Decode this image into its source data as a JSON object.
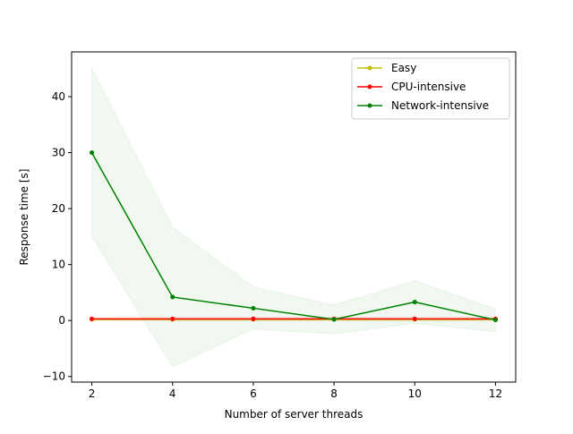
{
  "chart_data": {
    "type": "line",
    "title": "",
    "xlabel": "Number of server threads",
    "ylabel": "Response time [s]",
    "xlim": [
      1.5,
      12.5
    ],
    "ylim": [
      -11,
      48
    ],
    "xticks": [
      2,
      4,
      6,
      8,
      10,
      12
    ],
    "yticks": [
      -10,
      0,
      10,
      20,
      30,
      40
    ],
    "grid": false,
    "legend_position": "top-right",
    "x": [
      2,
      4,
      6,
      8,
      10,
      12
    ],
    "series": [
      {
        "name": "Easy",
        "color": "#bfbf00",
        "values": [
          0.2,
          0.2,
          0.2,
          0.2,
          0.2,
          0.2
        ],
        "band_lower": [
          0.0,
          0.0,
          0.0,
          0.0,
          0.0,
          0.0
        ],
        "band_upper": [
          0.4,
          0.4,
          0.4,
          0.4,
          0.4,
          0.4
        ]
      },
      {
        "name": "CPU-intensive",
        "color": "#ff0000",
        "values": [
          0.3,
          0.3,
          0.3,
          0.3,
          0.3,
          0.3
        ],
        "band_lower": [
          0.1,
          0.0,
          0.0,
          0.0,
          0.0,
          0.0
        ],
        "band_upper": [
          0.5,
          0.6,
          0.6,
          0.6,
          0.6,
          0.6
        ]
      },
      {
        "name": "Network-intensive",
        "color": "#008000",
        "values": [
          30.0,
          4.2,
          2.2,
          0.2,
          3.3,
          0.1
        ],
        "band_lower": [
          15.0,
          -8.3,
          -1.5,
          -2.4,
          -0.5,
          -2.0
        ],
        "band_upper": [
          45.2,
          16.7,
          6.0,
          2.8,
          7.1,
          2.1
        ]
      }
    ]
  }
}
